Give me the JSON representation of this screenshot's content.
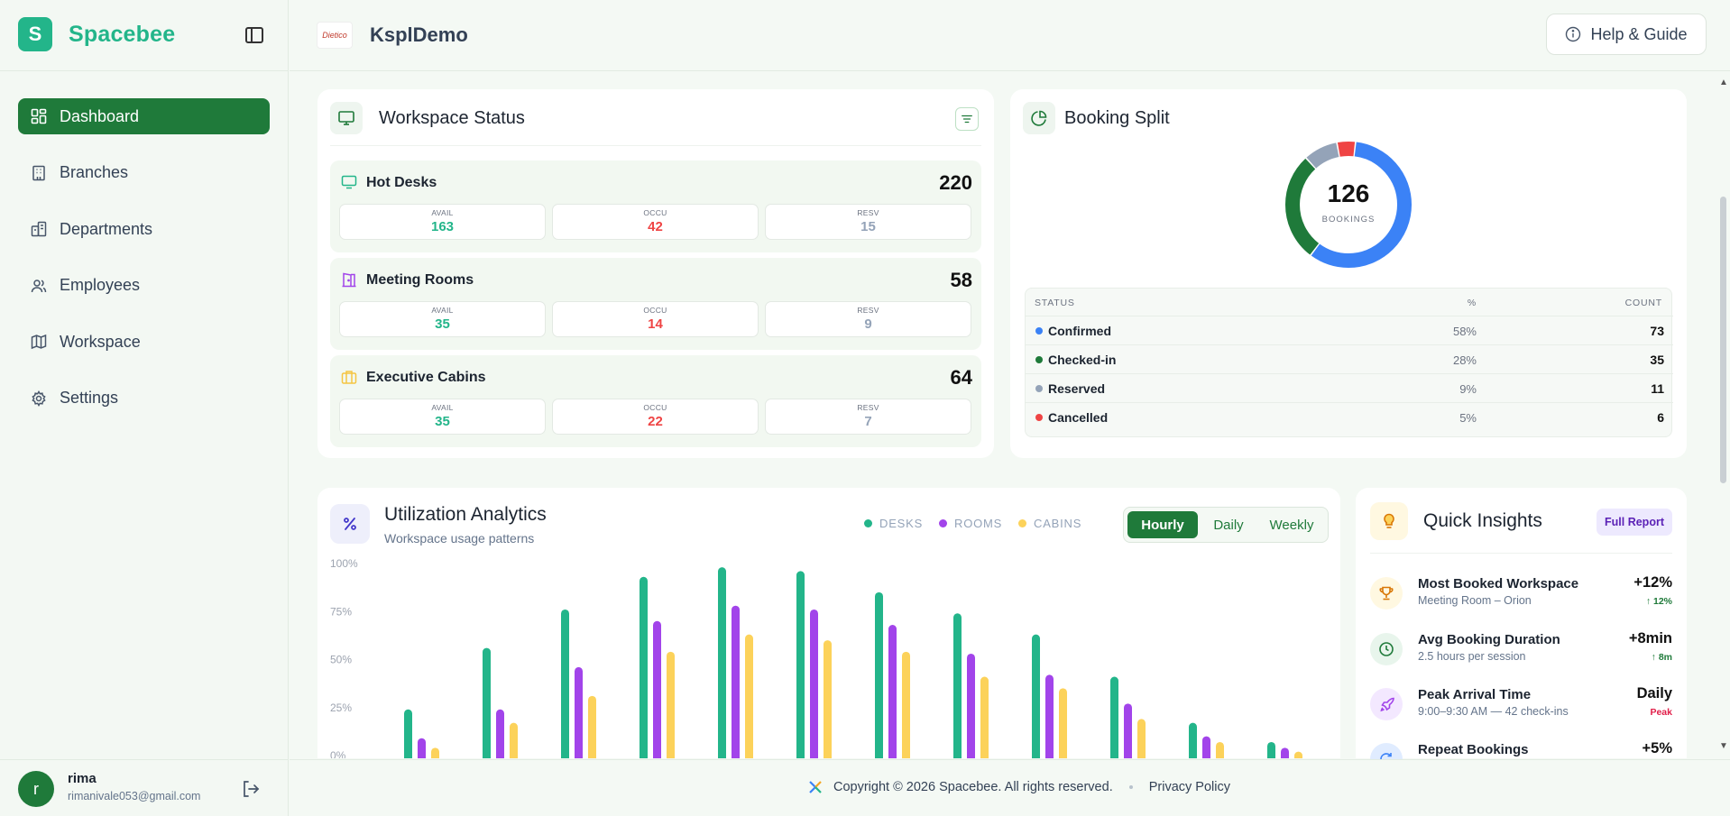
{
  "brand": {
    "logo_letter": "S",
    "name": "Spacebee"
  },
  "sidebar": {
    "items": [
      {
        "label": "Dashboard",
        "icon": "dashboard-icon",
        "active": true
      },
      {
        "label": "Branches",
        "icon": "building-icon",
        "active": false
      },
      {
        "label": "Departments",
        "icon": "departments-icon",
        "active": false
      },
      {
        "label": "Employees",
        "icon": "users-icon",
        "active": false
      },
      {
        "label": "Workspace",
        "icon": "map-icon",
        "active": false
      },
      {
        "label": "Settings",
        "icon": "gear-icon",
        "active": false
      }
    ],
    "user": {
      "initial": "r",
      "name": "rima",
      "email": "rimanivale053@gmail.com"
    }
  },
  "topbar": {
    "org_logo_text": "Dietico",
    "org_name": "KsplDemo",
    "help_label": "Help & Guide"
  },
  "workspace_status": {
    "title": "Workspace Status",
    "groups": [
      {
        "name": "Hot Desks",
        "total": "220",
        "avail": "163",
        "occu": "42",
        "resv": "15"
      },
      {
        "name": "Meeting Rooms",
        "total": "58",
        "avail": "35",
        "occu": "14",
        "resv": "9"
      },
      {
        "name": "Executive Cabins",
        "total": "64",
        "avail": "35",
        "occu": "22",
        "resv": "7"
      }
    ],
    "labels": {
      "avail": "AVAIL",
      "occu": "OCCU",
      "resv": "RESV"
    }
  },
  "booking_split": {
    "title": "Booking Split",
    "total": "126",
    "total_label": "BOOKINGS",
    "headers": {
      "status": "STATUS",
      "pct": "%",
      "count": "COUNT"
    },
    "rows": [
      {
        "name": "Confirmed",
        "pct": "58%",
        "count": "73",
        "color": "#3b82f6"
      },
      {
        "name": "Checked-in",
        "pct": "28%",
        "count": "35",
        "color": "#1f7a3a"
      },
      {
        "name": "Reserved",
        "pct": "9%",
        "count": "11",
        "color": "#94a3b8"
      },
      {
        "name": "Cancelled",
        "pct": "5%",
        "count": "6",
        "color": "#ef4444"
      }
    ]
  },
  "utilization": {
    "title": "Utilization Analytics",
    "subtitle": "Workspace usage patterns",
    "legend": [
      "DESKS",
      "ROOMS",
      "CABINS"
    ],
    "tabs": [
      "Hourly",
      "Daily",
      "Weekly"
    ],
    "active_tab": "Hourly"
  },
  "chart_data": {
    "type": "bar",
    "ylim": [
      0,
      100
    ],
    "y_ticks": [
      "100%",
      "75%",
      "50%",
      "25%",
      "0%"
    ],
    "series": [
      {
        "name": "DESKS",
        "color": "#23b58a",
        "values": [
          25,
          57,
          77,
          94,
          99,
          97,
          86,
          75,
          64,
          42,
          18,
          8
        ]
      },
      {
        "name": "ROOMS",
        "color": "#a244ea",
        "values": [
          10,
          25,
          47,
          71,
          79,
          77,
          69,
          54,
          43,
          28,
          11,
          5
        ]
      },
      {
        "name": "CABINS",
        "color": "#fcd25a",
        "values": [
          5,
          18,
          32,
          55,
          64,
          61,
          55,
          42,
          36,
          20,
          8,
          3
        ]
      }
    ]
  },
  "quick_insights": {
    "title": "Quick Insights",
    "report_label": "Full Report",
    "items": [
      {
        "title": "Most Booked Workspace",
        "sub": "Meeting Room – Orion",
        "value": "+12%",
        "delta": "↑ 12%",
        "delta_color": "#1f7a3a",
        "icon": "trophy-icon",
        "bg": "#fff8e1",
        "fg": "#d97706"
      },
      {
        "title": "Avg Booking Duration",
        "sub": "2.5 hours per session",
        "value": "+8min",
        "delta": "↑ 8m",
        "delta_color": "#1f7a3a",
        "icon": "clock-icon",
        "bg": "#e8f5ec",
        "fg": "#1f7a3a"
      },
      {
        "title": "Peak Arrival Time",
        "sub": "9:00–9:30 AM — 42 check-ins",
        "value": "Daily",
        "delta": "Peak",
        "delta_color": "#e11d48",
        "icon": "rocket-icon",
        "bg": "#f3e8ff",
        "fg": "#a244ea"
      },
      {
        "title": "Repeat Bookings",
        "sub": "",
        "value": "+5%",
        "delta": "",
        "delta_color": "#1f7a3a",
        "icon": "repeat-icon",
        "bg": "#e0ecff",
        "fg": "#3b82f6"
      }
    ]
  },
  "footer": {
    "copyright": "Copyright © 2026 Spacebee. All rights reserved.",
    "privacy": "Privacy Policy"
  }
}
